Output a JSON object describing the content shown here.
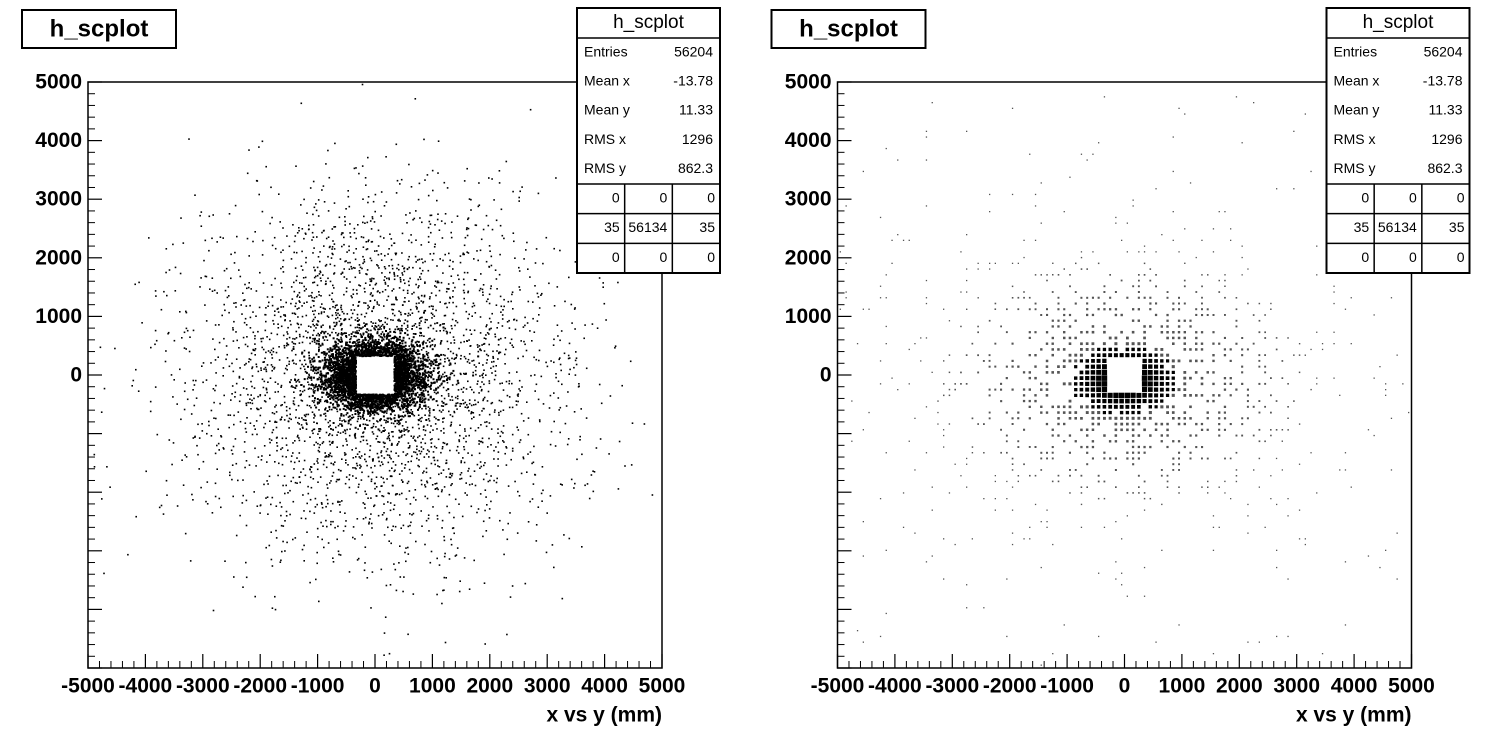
{
  "chart_data": [
    {
      "type": "scatter",
      "title": "h_scplot",
      "x_label": "x vs y (mm)",
      "xlim": [
        -5000,
        5000
      ],
      "ylim": [
        -5000,
        5000
      ],
      "xticks": [
        -5000,
        -4000,
        -3000,
        -2000,
        -1000,
        0,
        1000,
        2000,
        3000,
        4000,
        5000
      ],
      "yticks": [
        0,
        1000,
        2000,
        3000,
        4000,
        5000
      ],
      "color": "#000000",
      "stats_title": "h_scplot",
      "stats": [
        {
          "label": "Entries",
          "value": 56204
        },
        {
          "label": "Mean x",
          "value": -13.78
        },
        {
          "label": "Mean y",
          "value": 11.33
        },
        {
          "label": "RMS x",
          "value": 1296
        },
        {
          "label": "RMS y",
          "value": 862.3
        }
      ],
      "overflow": [
        [
          0,
          0,
          0
        ],
        [
          35,
          56134,
          35
        ],
        [
          0,
          0,
          0
        ]
      ]
    },
    {
      "type": "box",
      "title": "h_scplot",
      "x_label": "x vs y (mm)",
      "xlim": [
        -5000,
        5000
      ],
      "ylim": [
        -5000,
        5000
      ],
      "xticks": [
        -5000,
        -4000,
        -3000,
        -2000,
        -1000,
        0,
        1000,
        2000,
        3000,
        4000,
        5000
      ],
      "yticks": [
        0,
        1000,
        2000,
        3000,
        4000,
        5000
      ],
      "color": "#000000",
      "stats_title": "h_scplot",
      "stats": [
        {
          "label": "Entries",
          "value": 56204
        },
        {
          "label": "Mean x",
          "value": -13.78
        },
        {
          "label": "Mean y",
          "value": 11.33
        },
        {
          "label": "RMS x",
          "value": 1296
        },
        {
          "label": "RMS y",
          "value": 862.3
        }
      ],
      "overflow": [
        [
          0,
          0,
          0
        ],
        [
          35,
          56134,
          35
        ],
        [
          0,
          0,
          0
        ]
      ]
    }
  ]
}
